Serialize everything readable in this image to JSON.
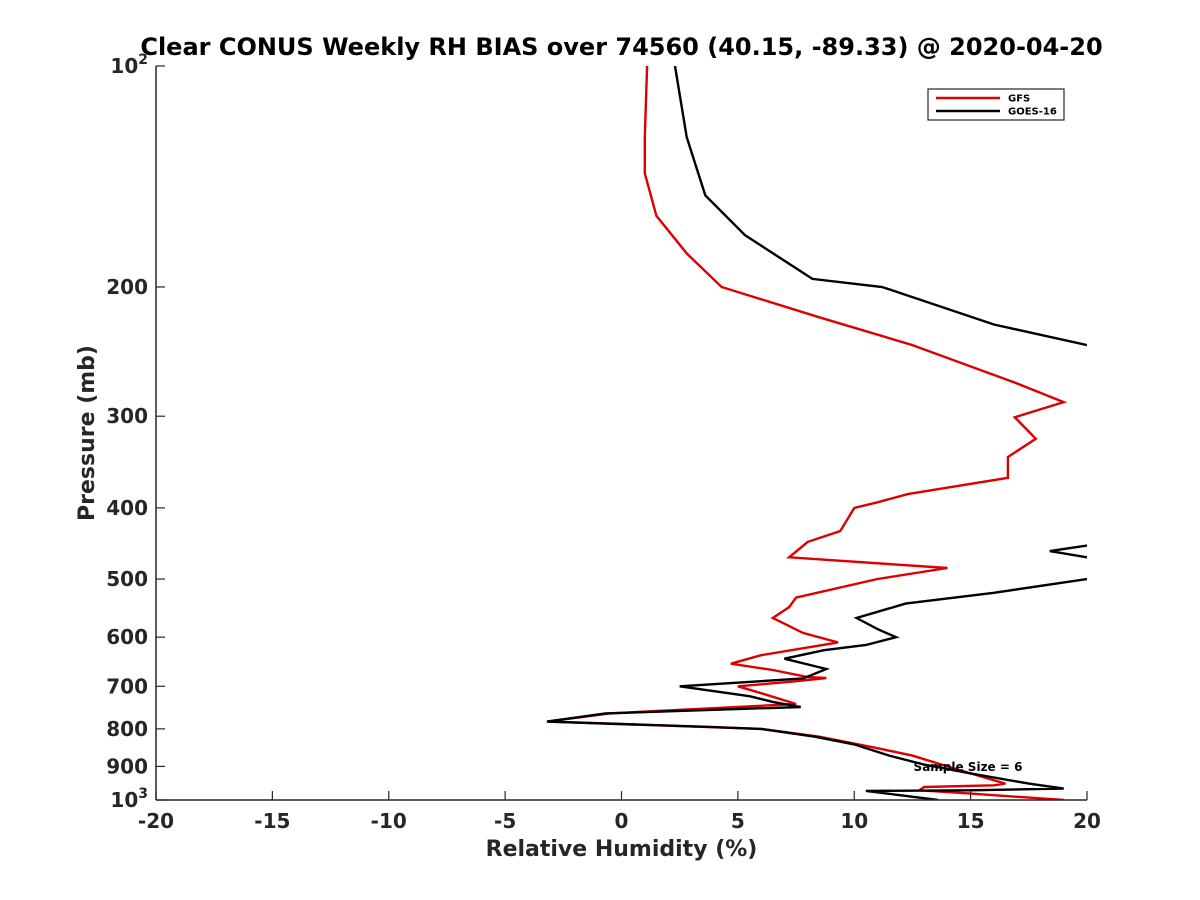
{
  "chart_data": {
    "type": "line",
    "title": "Clear CONUS Weekly RH BIAS over 74560 (40.15, -89.33) @ 2020-04-20",
    "xlabel": "Relative Humidity (%)",
    "ylabel": "Pressure (mb)",
    "xlim": [
      -20,
      20
    ],
    "ylim": [
      100,
      1000
    ],
    "y_scale": "log",
    "y_direction": "reversed",
    "x_ticks": [
      -20,
      -15,
      -10,
      -5,
      0,
      5,
      10,
      15,
      20
    ],
    "x_tick_labels": [
      "-20",
      "-15",
      "-10",
      "-5",
      "0",
      "5",
      "10",
      "15",
      "20"
    ],
    "y_ticks": [
      {
        "value": 100,
        "label": "10",
        "sup": "2"
      },
      {
        "value": 200,
        "label": "200",
        "sup": ""
      },
      {
        "value": 300,
        "label": "300",
        "sup": ""
      },
      {
        "value": 400,
        "label": "400",
        "sup": ""
      },
      {
        "value": 500,
        "label": "500",
        "sup": ""
      },
      {
        "value": 600,
        "label": "600",
        "sup": ""
      },
      {
        "value": 700,
        "label": "700",
        "sup": ""
      },
      {
        "value": 800,
        "label": "800",
        "sup": ""
      },
      {
        "value": 900,
        "label": "900",
        "sup": ""
      },
      {
        "value": 1000,
        "label": "10",
        "sup": "3"
      }
    ],
    "grid": false,
    "legend_position": "top-right",
    "annotation": "Sample Size = 6",
    "series": [
      {
        "name": "GFS",
        "color": "#dd0000",
        "points": [
          [
            1.1,
            100
          ],
          [
            1.0,
            125
          ],
          [
            1.0,
            140
          ],
          [
            1.5,
            160
          ],
          [
            2.8,
            180
          ],
          [
            4.3,
            200
          ],
          [
            8.5,
            220
          ],
          [
            12.5,
            240
          ],
          [
            16.9,
            270
          ],
          [
            19.0,
            287
          ],
          [
            16.9,
            301
          ],
          [
            17.8,
            322
          ],
          [
            16.6,
            341
          ],
          [
            16.6,
            364
          ],
          [
            12.3,
            383
          ],
          [
            11.0,
            393
          ],
          [
            10.0,
            400
          ],
          [
            9.4,
            430
          ],
          [
            8.0,
            445
          ],
          [
            7.2,
            467
          ],
          [
            14.0,
            483
          ],
          [
            11.0,
            500
          ],
          [
            7.5,
            530
          ],
          [
            7.2,
            546
          ],
          [
            6.5,
            565
          ],
          [
            7.8,
            592
          ],
          [
            9.3,
            610
          ],
          [
            6.0,
            635
          ],
          [
            4.7,
            652
          ],
          [
            6.5,
            665
          ],
          [
            8.0,
            680
          ],
          [
            8.8,
            682
          ],
          [
            7.3,
            690
          ],
          [
            5.0,
            700
          ],
          [
            6.3,
            720
          ],
          [
            7.5,
            740
          ],
          [
            -0.5,
            762
          ],
          [
            -3.2,
            782
          ],
          [
            4.5,
            797
          ],
          [
            6.0,
            800
          ],
          [
            8.5,
            820
          ],
          [
            11.0,
            850
          ],
          [
            12.5,
            870
          ],
          [
            14.0,
            900
          ],
          [
            15.5,
            930
          ],
          [
            16.5,
            950
          ],
          [
            16.0,
            955
          ],
          [
            13.0,
            960
          ],
          [
            12.8,
            970
          ],
          [
            15.0,
            980
          ],
          [
            19.0,
            1000
          ]
        ]
      },
      {
        "name": "GOES-16",
        "color": "#000000",
        "points": [
          [
            2.3,
            100
          ],
          [
            2.8,
            125
          ],
          [
            3.6,
            150
          ],
          [
            5.3,
            170
          ],
          [
            8.2,
            195
          ],
          [
            11.2,
            200
          ],
          [
            16.0,
            225
          ],
          [
            20.0,
            240
          ],
          [
            null,
            null
          ],
          [
            20.0,
            450
          ],
          [
            18.4,
            458
          ],
          [
            20.0,
            467
          ],
          [
            null,
            null
          ],
          [
            20.0,
            500
          ],
          [
            16.0,
            522
          ],
          [
            12.2,
            540
          ],
          [
            10.1,
            565
          ],
          [
            11.0,
            585
          ],
          [
            11.8,
            600
          ],
          [
            10.5,
            615
          ],
          [
            8.7,
            625
          ],
          [
            7.0,
            642
          ],
          [
            8.8,
            663
          ],
          [
            8.2,
            675
          ],
          [
            7.8,
            683
          ],
          [
            2.5,
            700
          ],
          [
            5.5,
            722
          ],
          [
            6.5,
            735
          ],
          [
            7.7,
            747
          ],
          [
            -0.7,
            762
          ],
          [
            -3.2,
            782
          ],
          [
            3.8,
            795
          ],
          [
            6.0,
            800
          ],
          [
            8.3,
            820
          ],
          [
            10.0,
            840
          ],
          [
            11.5,
            870
          ],
          [
            13.0,
            895
          ],
          [
            15.0,
            920
          ],
          [
            17.5,
            950
          ],
          [
            19.0,
            965
          ],
          [
            15.0,
            970
          ],
          [
            10.5,
            972
          ],
          [
            13.6,
            1000
          ]
        ]
      }
    ]
  }
}
